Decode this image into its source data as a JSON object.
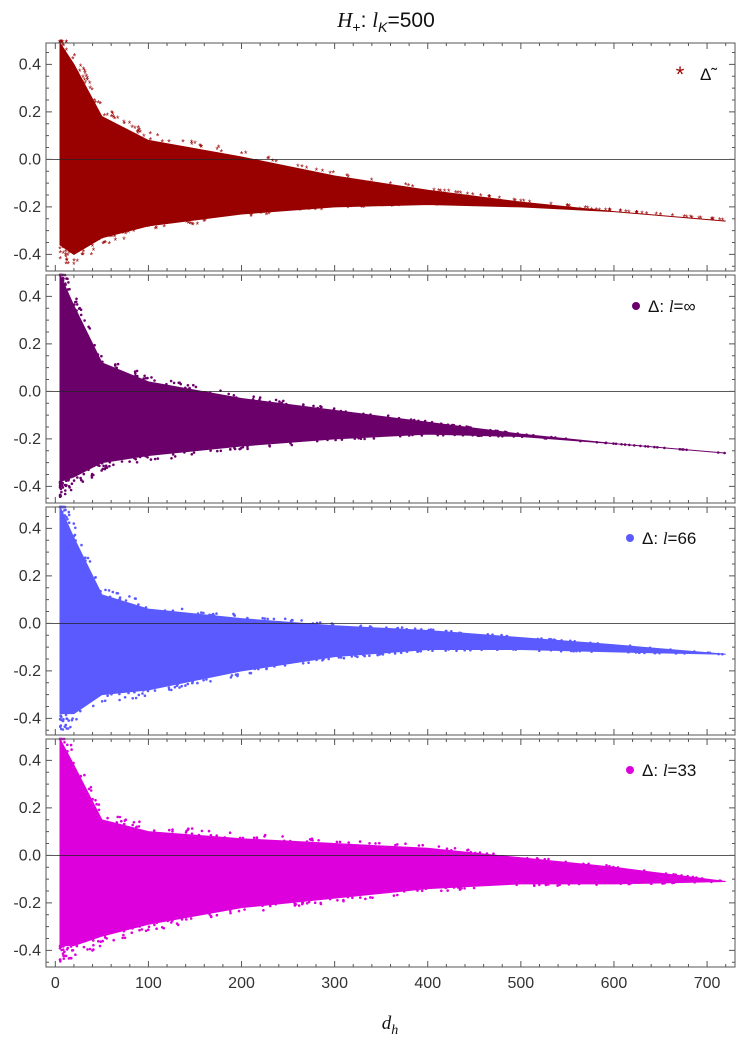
{
  "title": {
    "main": "H",
    "sub": "+",
    "mid": ": ",
    "lk": "l",
    "lk_sub": "K",
    "value": "=500"
  },
  "xlabel": {
    "main": "d",
    "sub": "h"
  },
  "chart_data": [
    {
      "type": "scatter",
      "x_ticks": [
        0,
        100,
        200,
        300,
        400,
        500,
        600,
        700
      ],
      "x_tick_labels": [
        "0",
        "100",
        "200",
        "300",
        "400",
        "500",
        "600",
        "700"
      ],
      "xlim": [
        -10,
        730
      ],
      "ylim": [
        -0.47,
        0.49
      ],
      "y_ticks": [
        -0.4,
        -0.2,
        0.0,
        0.2,
        0.4
      ],
      "y_tick_labels": [
        "-0.4",
        "-0.2",
        "0.0",
        "0.2",
        "0.4"
      ],
      "reference_line_y": 0.0,
      "grid": false,
      "legend_position": "top-right",
      "series": [
        {
          "name": "Δ̃",
          "marker": "star",
          "color": "#990000",
          "envelope": {
            "d": [
              5,
              20,
              50,
              100,
              200,
              300,
              400,
              500,
              600,
              720
            ],
            "upper": [
              0.49,
              0.4,
              0.18,
              0.08,
              0.01,
              -0.07,
              -0.13,
              -0.18,
              -0.22,
              -0.26
            ],
            "lower": [
              -0.36,
              -0.4,
              -0.33,
              -0.28,
              -0.23,
              -0.2,
              -0.19,
              -0.2,
              -0.22,
              -0.26
            ]
          }
        }
      ]
    },
    {
      "type": "scatter",
      "xlim": [
        -10,
        730
      ],
      "ylim": [
        -0.47,
        0.49
      ],
      "y_ticks": [
        -0.4,
        -0.2,
        0.0,
        0.2,
        0.4
      ],
      "y_tick_labels": [
        "-0.4",
        "-0.2",
        "0.0",
        "0.2",
        "0.4"
      ],
      "reference_line_y": 0.0,
      "grid": false,
      "legend_position": "top-right",
      "series": [
        {
          "name": "Δ: l=∞",
          "marker": "dot",
          "color": "#6b006b",
          "legend_prefix": "Δ: ",
          "legend_var": "l",
          "legend_suffix": "=∞",
          "envelope": {
            "d": [
              5,
              20,
              50,
              100,
              200,
              300,
              400,
              500,
              600,
              720
            ],
            "upper": [
              0.49,
              0.36,
              0.12,
              0.04,
              -0.03,
              -0.08,
              -0.13,
              -0.18,
              -0.22,
              -0.26
            ],
            "lower": [
              -0.38,
              -0.36,
              -0.3,
              -0.27,
              -0.23,
              -0.2,
              -0.18,
              -0.19,
              -0.22,
              -0.26
            ]
          }
        }
      ]
    },
    {
      "type": "scatter",
      "xlim": [
        -10,
        730
      ],
      "ylim": [
        -0.47,
        0.49
      ],
      "y_ticks": [
        -0.4,
        -0.2,
        0.0,
        0.2,
        0.4
      ],
      "y_tick_labels": [
        "-0.4",
        "-0.2",
        "0.0",
        "0.2",
        "0.4"
      ],
      "reference_line_y": 0.0,
      "grid": false,
      "legend_position": "top-right",
      "series": [
        {
          "name": "Δ: l=66",
          "marker": "dot",
          "color": "#5a5aff",
          "legend_prefix": "Δ: ",
          "legend_var": "l",
          "legend_suffix": "=66",
          "envelope": {
            "d": [
              5,
              20,
              50,
              100,
              200,
              300,
              400,
              500,
              600,
              720
            ],
            "upper": [
              0.49,
              0.36,
              0.12,
              0.06,
              0.02,
              -0.01,
              -0.03,
              -0.06,
              -0.09,
              -0.13
            ],
            "lower": [
              -0.38,
              -0.38,
              -0.3,
              -0.28,
              -0.2,
              -0.14,
              -0.11,
              -0.11,
              -0.12,
              -0.13
            ]
          }
        }
      ]
    },
    {
      "type": "scatter",
      "xlim": [
        -10,
        730
      ],
      "ylim": [
        -0.47,
        0.49
      ],
      "y_ticks": [
        -0.4,
        -0.2,
        0.0,
        0.2,
        0.4
      ],
      "y_tick_labels": [
        "-0.4",
        "-0.2",
        "0.0",
        "0.2",
        "0.4"
      ],
      "reference_line_y": 0.0,
      "grid": false,
      "legend_position": "top-right",
      "series": [
        {
          "name": "Δ: l=33",
          "marker": "dot",
          "color": "#dd00dd",
          "legend_prefix": "Δ: ",
          "legend_var": "l",
          "legend_suffix": "=33",
          "envelope": {
            "d": [
              5,
              20,
              50,
              100,
              200,
              300,
              400,
              500,
              600,
              720
            ],
            "upper": [
              0.49,
              0.38,
              0.15,
              0.1,
              0.07,
              0.05,
              0.03,
              -0.01,
              -0.05,
              -0.11
            ],
            "lower": [
              -0.38,
              -0.38,
              -0.34,
              -0.29,
              -0.22,
              -0.18,
              -0.14,
              -0.12,
              -0.12,
              -0.11
            ]
          }
        }
      ]
    }
  ]
}
